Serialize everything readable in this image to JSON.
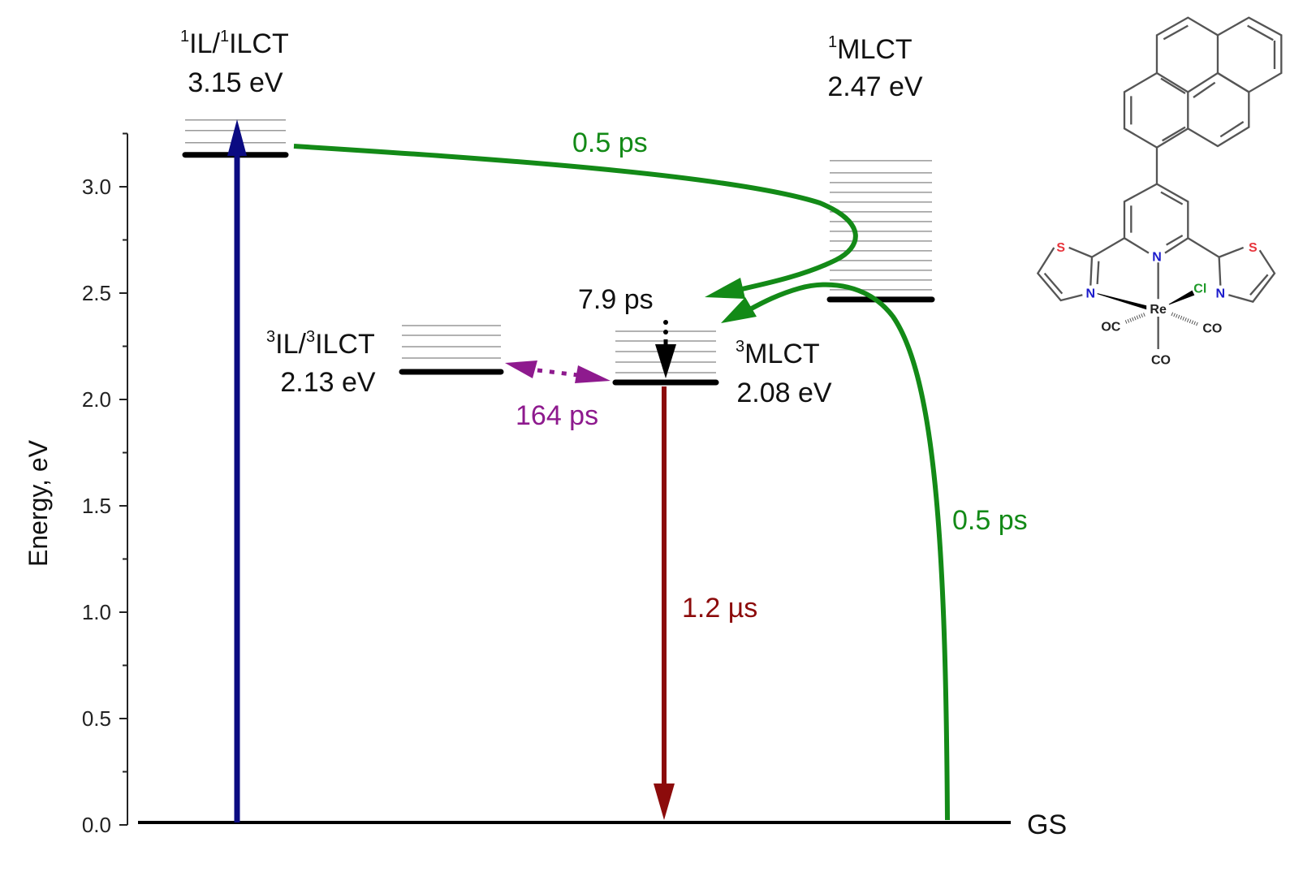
{
  "axis": {
    "label": "Energy, eV",
    "range": [
      0,
      3.25
    ],
    "ticks": [
      "0.0",
      "0.5",
      "1.0",
      "1.5",
      "2.0",
      "2.5",
      "3.0"
    ]
  },
  "levels": {
    "s_il": {
      "state_sup": "1",
      "state_a": "IL/",
      "state_sup2": "1",
      "state_b": "ILCT",
      "energy_label": "3.15 eV",
      "energy": 3.15
    },
    "s_mlct": {
      "state_sup": "1",
      "state_a": "MLCT",
      "energy_label": "2.47 eV",
      "energy": 2.47
    },
    "t_il": {
      "state_sup": "3",
      "state_a": "IL/",
      "state_sup2": "3",
      "state_b": "ILCT",
      "energy_label": "2.13 eV",
      "energy": 2.13
    },
    "t_mlct": {
      "state_sup": "3",
      "state_a": "MLCT",
      "energy_label": "2.08 eV",
      "energy": 2.08
    },
    "gs": {
      "label": "GS",
      "energy": 0
    }
  },
  "transitions": {
    "isc_il": "0.5 ps",
    "relax_mlct": "7.9 ps",
    "equilibrium": "164 ps",
    "emission": "1.2 µs",
    "isc_mlct": "0.5 ps"
  },
  "molecule": {
    "atoms": {
      "s": "S",
      "n": "N",
      "re": "Re",
      "cl": "Cl",
      "oc": "OC",
      "co": "CO"
    }
  },
  "colors": {
    "excitation": "#0b0b82",
    "isc": "#138a17",
    "emission": "#8c0b0b",
    "equilibrium": "#8e1a8e",
    "sulfur": "#e8343c",
    "nitrogen": "#1a1acc",
    "chlorine": "#1f9a2a"
  }
}
